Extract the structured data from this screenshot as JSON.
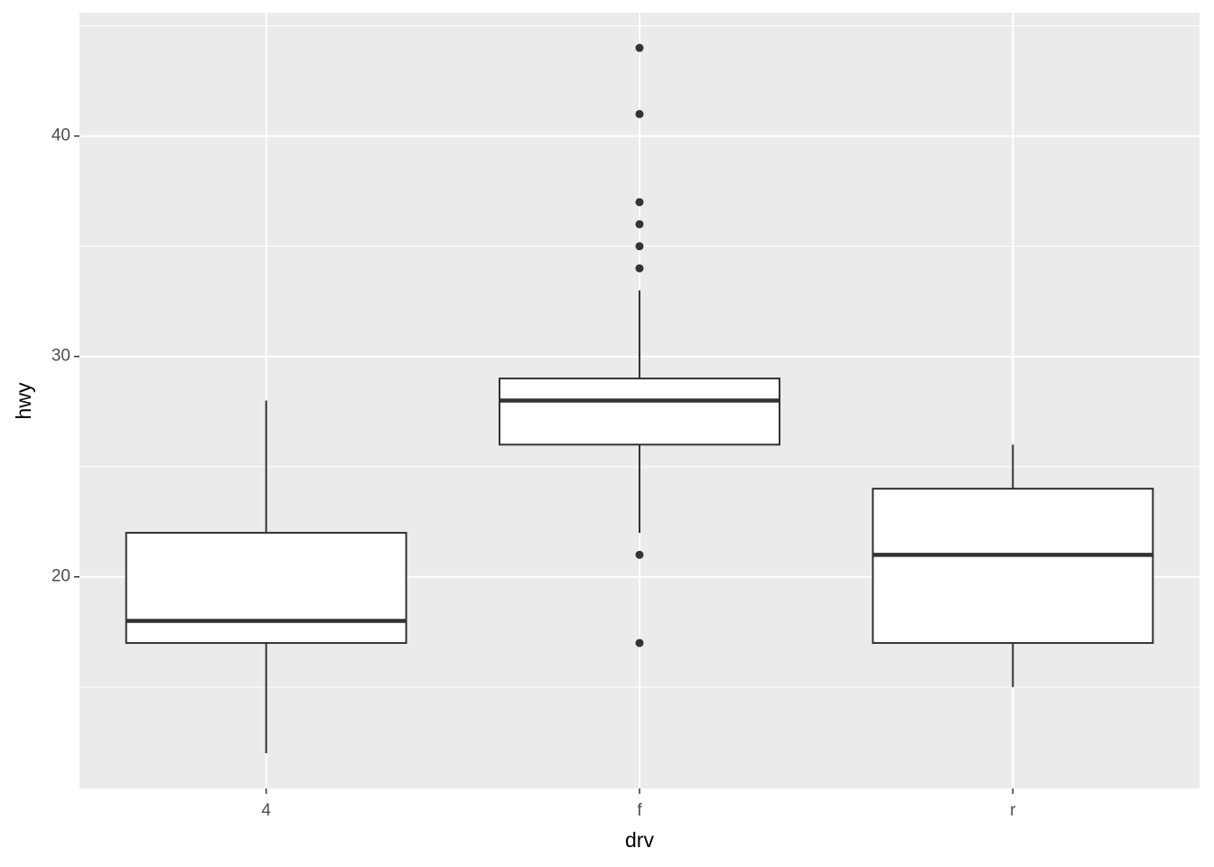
{
  "chart_data": {
    "type": "boxplot",
    "x_label": "drv",
    "y_label": "hwy",
    "categories": [
      "4",
      "f",
      "r"
    ],
    "boxes": [
      {
        "min": 12,
        "q1": 17,
        "median": 18,
        "q3": 22,
        "max": 28,
        "outliers": []
      },
      {
        "min": 22,
        "q1": 26,
        "median": 28,
        "q3": 29,
        "max": 33,
        "outliers": [
          44,
          41,
          37,
          36,
          35,
          34,
          21,
          17
        ]
      },
      {
        "min": 15,
        "q1": 17,
        "median": 21,
        "q3": 24,
        "max": 26,
        "outliers": []
      }
    ],
    "box_fill": "#ffffff",
    "box_stroke": "#333333",
    "panel_color": "#ebebeb",
    "ylim": [
      10.4,
      45.6
    ],
    "yticks": [
      20,
      30,
      40
    ],
    "yminor": [
      15,
      25,
      35,
      45
    ],
    "grid": true
  }
}
